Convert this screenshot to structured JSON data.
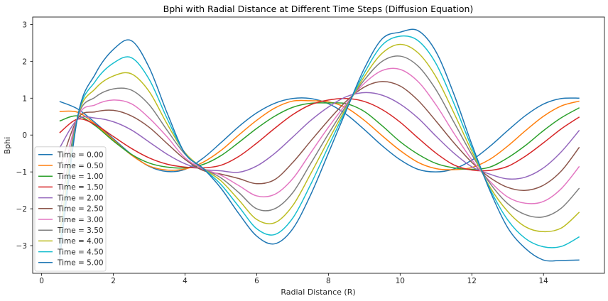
{
  "chart_data": {
    "type": "line",
    "title": "Bphi with Radial Distance at Different Time Steps (Diffusion Equation)",
    "xlabel": "Radial Distance (R)",
    "ylabel": "Bphi",
    "xlim": [
      -0.25,
      15.7
    ],
    "ylim": [
      -3.75,
      3.2
    ],
    "x_ticks": [
      0,
      2,
      4,
      6,
      8,
      10,
      12,
      14
    ],
    "y_ticks": [
      3,
      2,
      1,
      0,
      -1,
      -2,
      -3
    ],
    "y_tick_labels": [
      "3",
      "2",
      "1",
      "0",
      "−1",
      "−2",
      "−3"
    ],
    "grid": false,
    "legend_position": "lower-left",
    "x": [
      0.5,
      1.0,
      1.5,
      2.0,
      2.5,
      3.0,
      3.5,
      4.0,
      4.5,
      5.0,
      5.5,
      6.0,
      6.5,
      7.0,
      7.5,
      8.0,
      8.5,
      9.0,
      9.5,
      10.0,
      10.5,
      11.0,
      11.5,
      12.0,
      12.5,
      13.0,
      13.5,
      14.0,
      14.5,
      15.0
    ],
    "series": [
      {
        "name": "Time = 0.00",
        "color": "#1f77b4",
        "values": [
          0.91,
          0.71,
          0.33,
          -0.1,
          -0.52,
          -0.85,
          -0.99,
          -0.93,
          -0.63,
          -0.21,
          0.23,
          0.6,
          0.86,
          0.99,
          0.99,
          0.85,
          0.56,
          0.15,
          -0.29,
          -0.67,
          -0.93,
          -1.0,
          -0.92,
          -0.68,
          -0.31,
          0.12,
          0.53,
          0.84,
          0.99,
          1.0
        ]
      },
      {
        "name": "Time = 0.50",
        "color": "#ff7f0e",
        "values": [
          0.64,
          0.62,
          0.29,
          -0.13,
          -0.54,
          -0.84,
          -0.95,
          -0.92,
          -0.74,
          -0.42,
          0.0,
          0.4,
          0.73,
          0.92,
          0.93,
          0.9,
          0.74,
          0.4,
          -0.02,
          -0.42,
          -0.74,
          -0.91,
          -0.94,
          -0.88,
          -0.66,
          -0.3,
          0.12,
          0.51,
          0.79,
          0.92
        ]
      },
      {
        "name": "Time = 1.00",
        "color": "#2ca02c",
        "values": [
          0.38,
          0.52,
          0.25,
          -0.16,
          -0.52,
          -0.76,
          -0.87,
          -0.89,
          -0.8,
          -0.56,
          -0.2,
          0.18,
          0.51,
          0.75,
          0.86,
          0.87,
          0.85,
          0.64,
          0.25,
          -0.18,
          -0.52,
          -0.77,
          -0.89,
          -0.93,
          -0.87,
          -0.62,
          -0.28,
          0.12,
          0.47,
          0.74
        ]
      },
      {
        "name": "Time = 1.50",
        "color": "#d62728",
        "values": [
          0.06,
          0.43,
          0.28,
          -0.04,
          -0.36,
          -0.62,
          -0.79,
          -0.87,
          -0.89,
          -0.82,
          -0.58,
          -0.22,
          0.18,
          0.55,
          0.82,
          0.95,
          0.99,
          0.91,
          0.69,
          0.35,
          -0.08,
          -0.49,
          -0.81,
          -0.95,
          -0.96,
          -0.85,
          -0.57,
          -0.21,
          0.17,
          0.49
        ]
      },
      {
        "name": "Time = 2.00",
        "color": "#9467bd",
        "values": [
          -0.35,
          0.42,
          0.46,
          0.36,
          0.14,
          -0.19,
          -0.52,
          -0.78,
          -0.93,
          -0.97,
          -1.01,
          -0.84,
          -0.5,
          -0.06,
          0.39,
          0.76,
          1.04,
          1.15,
          1.08,
          0.84,
          0.46,
          -0.03,
          -0.49,
          -0.86,
          -1.06,
          -1.19,
          -1.14,
          -0.89,
          -0.45,
          0.13
        ]
      },
      {
        "name": "Time = 2.50",
        "color": "#8c564b",
        "values": [
          -0.9,
          0.44,
          0.63,
          0.67,
          0.52,
          0.21,
          -0.23,
          -0.66,
          -0.96,
          -1.06,
          -1.18,
          -1.32,
          -1.21,
          -0.75,
          -0.17,
          0.4,
          0.92,
          1.3,
          1.45,
          1.33,
          0.94,
          0.38,
          -0.21,
          -0.74,
          -1.15,
          -1.42,
          -1.5,
          -1.36,
          -0.97,
          -0.33
        ]
      },
      {
        "name": "Time = 3.00",
        "color": "#e377c2",
        "values": [
          -1.6,
          0.47,
          0.82,
          0.95,
          0.85,
          0.46,
          -0.05,
          -0.62,
          -0.91,
          -1.09,
          -1.37,
          -1.65,
          -1.61,
          -1.19,
          -0.49,
          0.21,
          0.85,
          1.4,
          1.75,
          1.78,
          1.45,
          0.82,
          0.05,
          -0.67,
          -1.25,
          -1.68,
          -1.85,
          -1.8,
          -1.45,
          -0.85
        ]
      },
      {
        "name": "Time = 3.50",
        "color": "#7f7f7f",
        "values": [
          -2.2,
          0.47,
          1.03,
          1.25,
          1.22,
          0.82,
          0.13,
          -0.52,
          -0.9,
          -1.16,
          -1.56,
          -2.0,
          -2.0,
          -1.57,
          -0.78,
          0.03,
          0.8,
          1.49,
          2.0,
          2.14,
          1.87,
          1.23,
          0.35,
          -0.53,
          -1.3,
          -1.86,
          -2.16,
          -2.22,
          -1.98,
          -1.44
        ]
      },
      {
        "name": "Time = 4.00",
        "color": "#bcbd22",
        "values": [
          -2.7,
          0.47,
          1.26,
          1.6,
          1.66,
          1.18,
          0.3,
          -0.48,
          -0.9,
          -1.24,
          -1.76,
          -2.29,
          -2.38,
          -1.92,
          -1.06,
          -0.14,
          0.75,
          1.58,
          2.22,
          2.46,
          2.23,
          1.58,
          0.6,
          -0.44,
          -1.4,
          -2.07,
          -2.49,
          -2.62,
          -2.52,
          -2.09
        ]
      },
      {
        "name": "Time = 4.50",
        "color": "#17becf",
        "values": [
          -3.05,
          0.47,
          1.46,
          1.95,
          2.1,
          1.51,
          0.45,
          -0.5,
          -0.9,
          -1.34,
          -1.94,
          -2.54,
          -2.7,
          -2.26,
          -1.35,
          -0.31,
          0.71,
          1.68,
          2.44,
          2.68,
          2.56,
          1.94,
          0.86,
          -0.34,
          -1.45,
          -2.3,
          -2.81,
          -3.03,
          -3.02,
          -2.76
        ]
      },
      {
        "name": "Time = 5.00",
        "color": "#1f77b4",
        "values": [
          -3.38,
          0.47,
          1.66,
          2.32,
          2.56,
          1.83,
          0.6,
          -0.5,
          -0.9,
          -1.44,
          -2.13,
          -2.74,
          -2.95,
          -2.55,
          -1.63,
          -0.49,
          0.67,
          1.8,
          2.61,
          2.79,
          2.83,
          2.26,
          1.11,
          -0.25,
          -1.5,
          -2.51,
          -3.08,
          -3.39,
          -3.4,
          -3.39
        ]
      }
    ]
  }
}
